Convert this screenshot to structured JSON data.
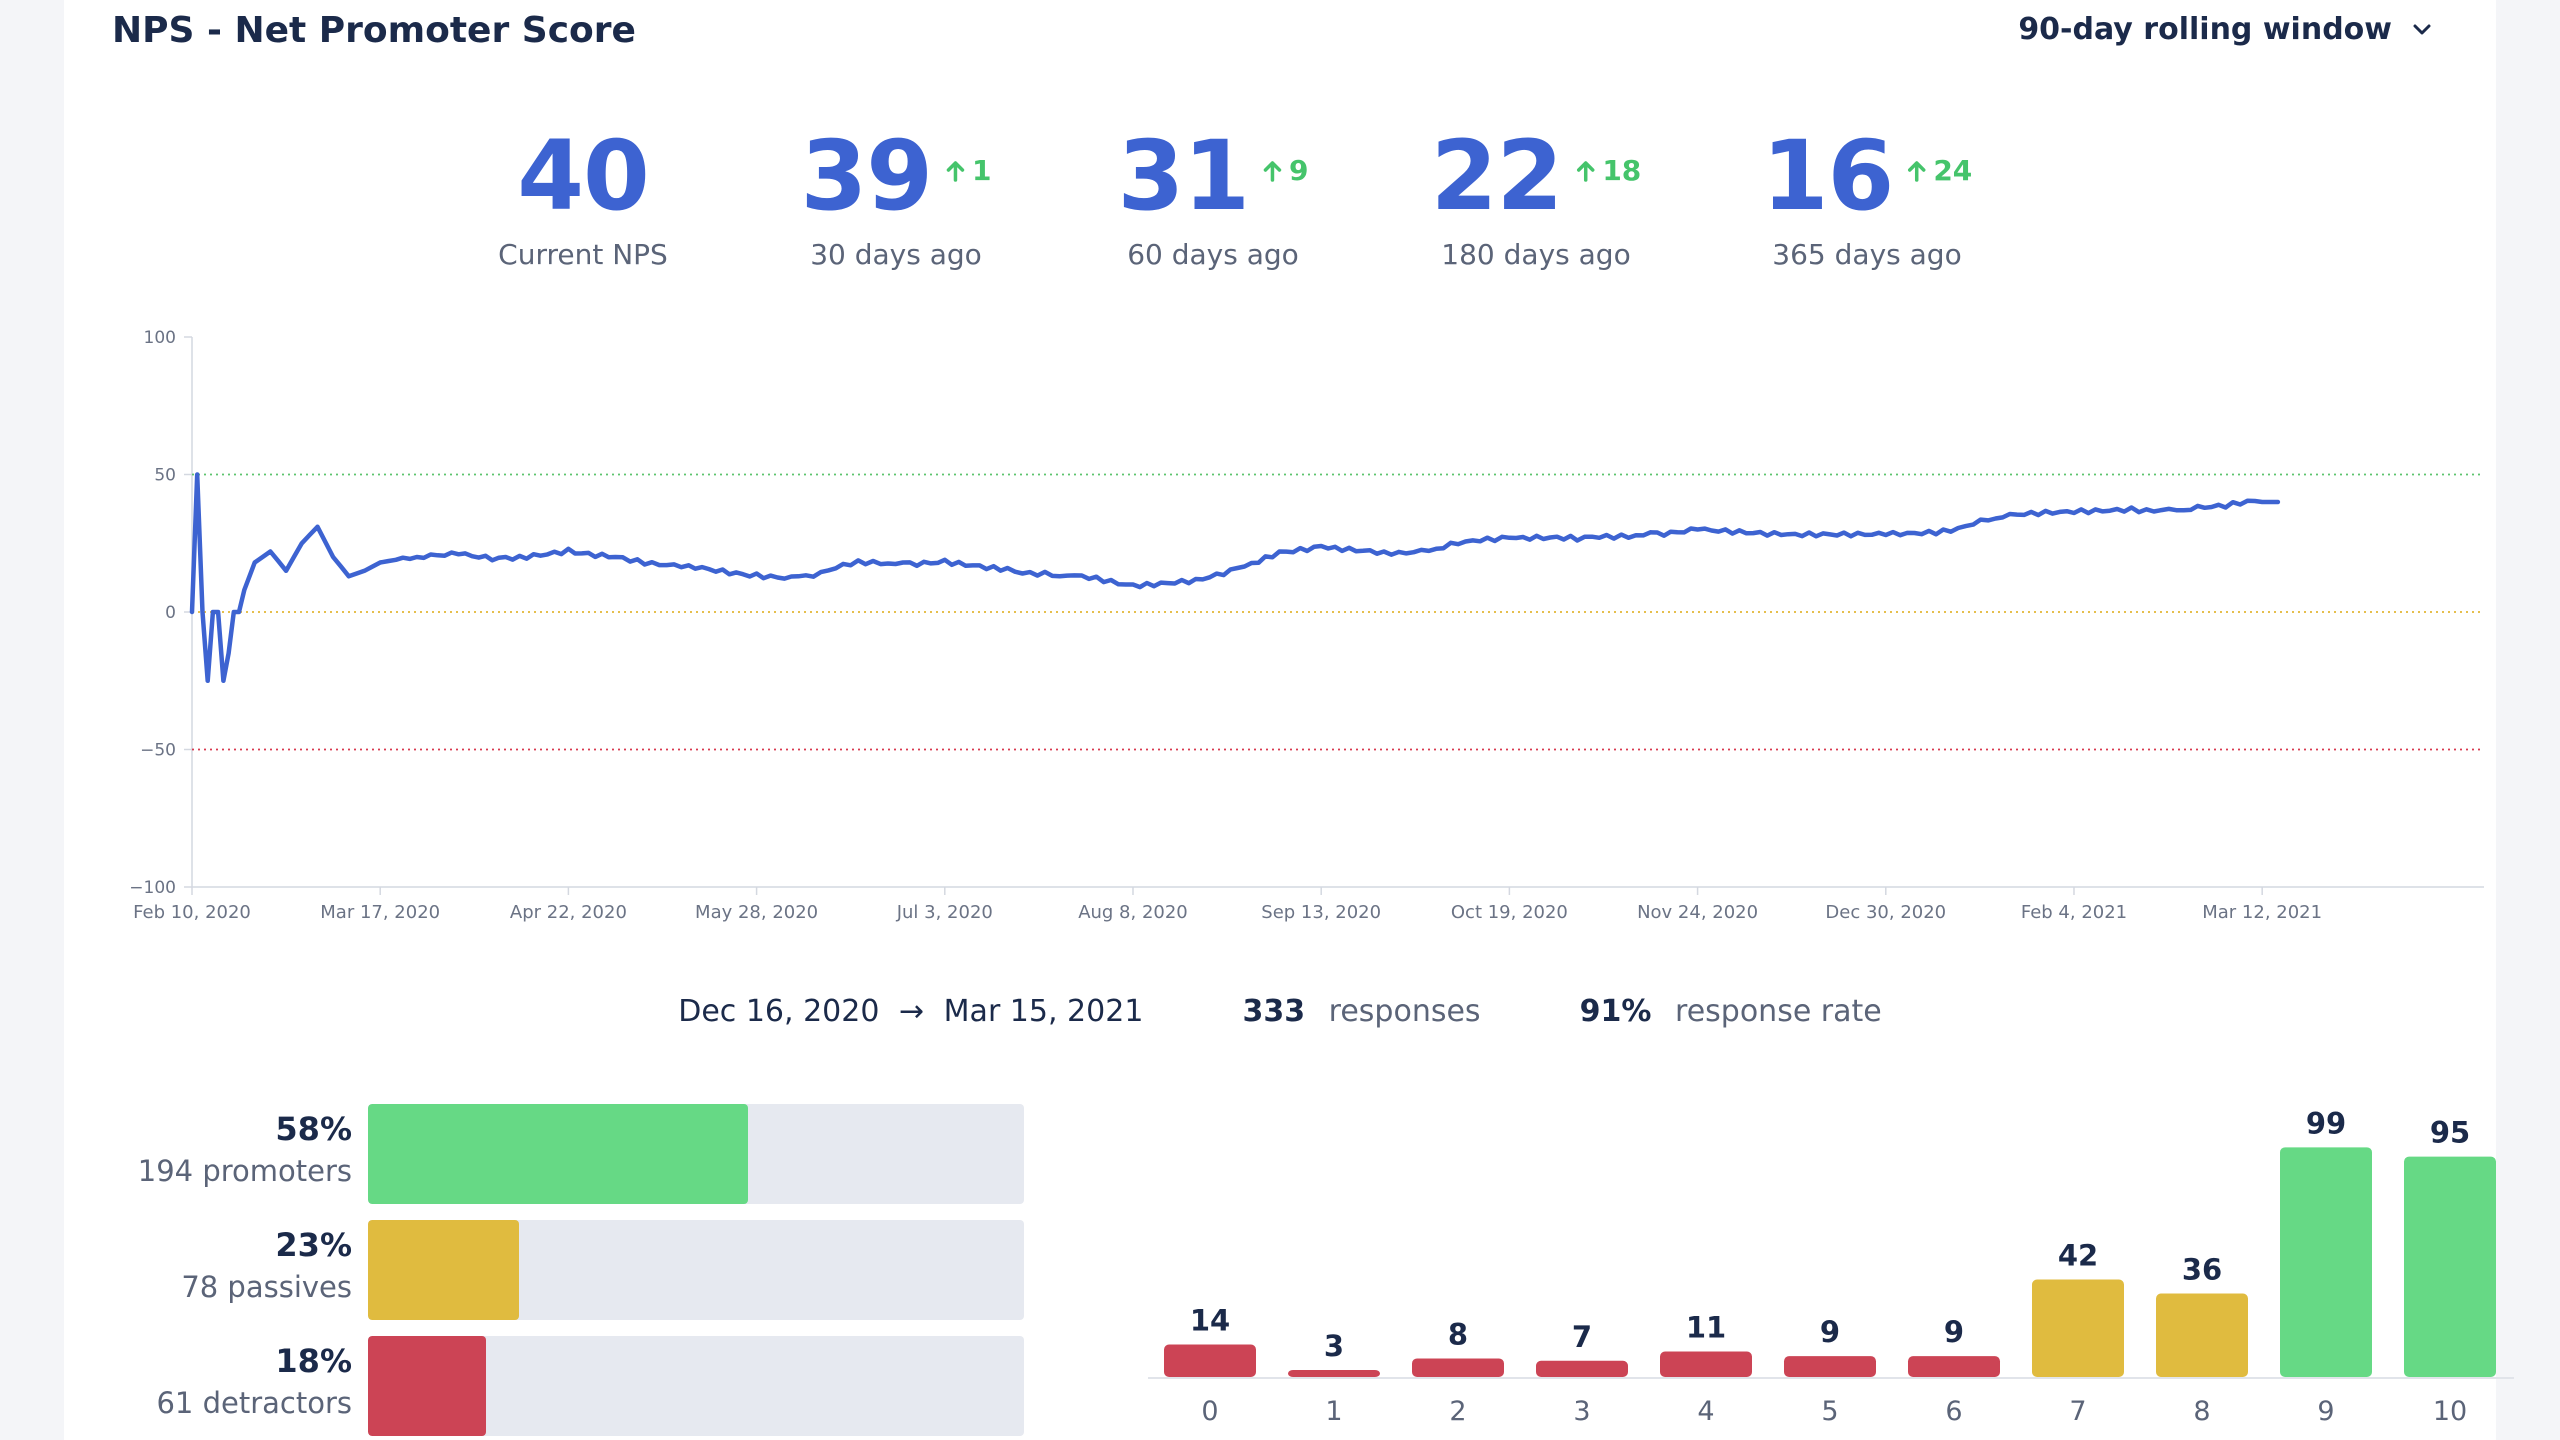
{
  "header": {
    "title": "NPS - Net Promoter Score",
    "window_select": "90-day rolling window"
  },
  "kpis": [
    {
      "value": "40",
      "label": "Current NPS",
      "delta": ""
    },
    {
      "value": "39",
      "label": "30 days ago",
      "delta": "1"
    },
    {
      "value": "31",
      "label": "60 days ago",
      "delta": "9"
    },
    {
      "value": "22",
      "label": "180 days ago",
      "delta": "18"
    },
    {
      "value": "16",
      "label": "365 days ago",
      "delta": "24"
    }
  ],
  "summary": {
    "start_date": "Dec 16, 2020",
    "arrow": "→",
    "end_date": "Mar 15, 2021",
    "responses_count": "333",
    "responses_label": "responses",
    "rate_value": "91%",
    "rate_label": "response rate"
  },
  "segments": [
    {
      "pct": "58%",
      "count": "194 promoters",
      "fraction": 0.58,
      "color": "#66d985"
    },
    {
      "pct": "23%",
      "count": "78 passives",
      "fraction": 0.23,
      "color": "#e0bb3f"
    },
    {
      "pct": "18%",
      "count": "61 detractors",
      "fraction": 0.18,
      "color": "#cc4455"
    }
  ],
  "chart_data": [
    {
      "type": "line",
      "x_tick_labels": [
        "Feb 10, 2020",
        "Mar 17, 2020",
        "Apr 22, 2020",
        "May 28, 2020",
        "Jul 3, 2020",
        "Aug 8, 2020",
        "Sep 13, 2020",
        "Oct 19, 2020",
        "Nov 24, 2020",
        "Dec 30, 2020",
        "Feb 4, 2021",
        "Mar 12, 2021"
      ],
      "x_range": [
        "Feb 10, 2020",
        "Mar 15, 2021"
      ],
      "ylim": [
        -100,
        100
      ],
      "y_ticks": [
        100,
        50,
        0,
        -50,
        -100
      ],
      "y_tick_labels": [
        "100",
        "50",
        "0",
        "−50",
        "−100"
      ],
      "reference_lines": [
        {
          "value": 50,
          "color": "#5cc46e",
          "style": "dotted"
        },
        {
          "value": 0,
          "color": "#e2b634",
          "style": "dotted"
        },
        {
          "value": -50,
          "color": "#d8394f",
          "style": "dotted"
        }
      ],
      "line_color": "#3d63d1",
      "series": [
        {
          "x": [
            "2020-02-10",
            "2020-02-11",
            "2020-02-12",
            "2020-02-13",
            "2020-02-14",
            "2020-02-15",
            "2020-02-16",
            "2020-02-17",
            "2020-02-18",
            "2020-02-19",
            "2020-02-20",
            "2020-02-22",
            "2020-02-25",
            "2020-02-28",
            "2020-03-02",
            "2020-03-05",
            "2020-03-08",
            "2020-03-11",
            "2020-03-14",
            "2020-03-17",
            "2020-03-20",
            "2020-03-24",
            "2020-04-01",
            "2020-04-10",
            "2020-04-22",
            "2020-05-01",
            "2020-05-15",
            "2020-05-28",
            "2020-06-05",
            "2020-06-15",
            "2020-06-25",
            "2020-07-03",
            "2020-07-15",
            "2020-07-25",
            "2020-08-08",
            "2020-08-20",
            "2020-08-28",
            "2020-09-05",
            "2020-09-13",
            "2020-09-25",
            "2020-10-05",
            "2020-10-19",
            "2020-11-01",
            "2020-11-15",
            "2020-11-24",
            "2020-12-10",
            "2020-12-30",
            "2021-01-10",
            "2021-01-20",
            "2021-02-04",
            "2021-02-15",
            "2021-02-25",
            "2021-03-05",
            "2021-03-12",
            "2021-03-15"
          ],
          "values": [
            0,
            50,
            0,
            -25,
            0,
            0,
            -25,
            -15,
            0,
            0,
            8,
            18,
            22,
            15,
            25,
            31,
            20,
            13,
            15,
            18,
            19,
            20,
            21,
            20,
            23,
            20,
            17,
            14,
            13,
            17,
            18,
            19,
            16,
            13,
            10,
            12,
            16,
            22,
            24,
            22,
            23,
            27,
            26,
            29,
            30,
            28,
            28,
            30,
            34,
            36,
            38,
            37,
            38,
            40,
            40
          ]
        }
      ]
    },
    {
      "type": "bar",
      "categories": [
        "0",
        "1",
        "2",
        "3",
        "4",
        "5",
        "6",
        "7",
        "8",
        "9",
        "10"
      ],
      "values": [
        14,
        3,
        8,
        7,
        11,
        9,
        9,
        42,
        36,
        99,
        95
      ],
      "colors": [
        "#cc4455",
        "#cc4455",
        "#cc4455",
        "#cc4455",
        "#cc4455",
        "#cc4455",
        "#cc4455",
        "#e0bb3f",
        "#e0bb3f",
        "#66d985",
        "#66d985"
      ],
      "ylim": [
        0,
        100
      ],
      "grid": false
    }
  ]
}
